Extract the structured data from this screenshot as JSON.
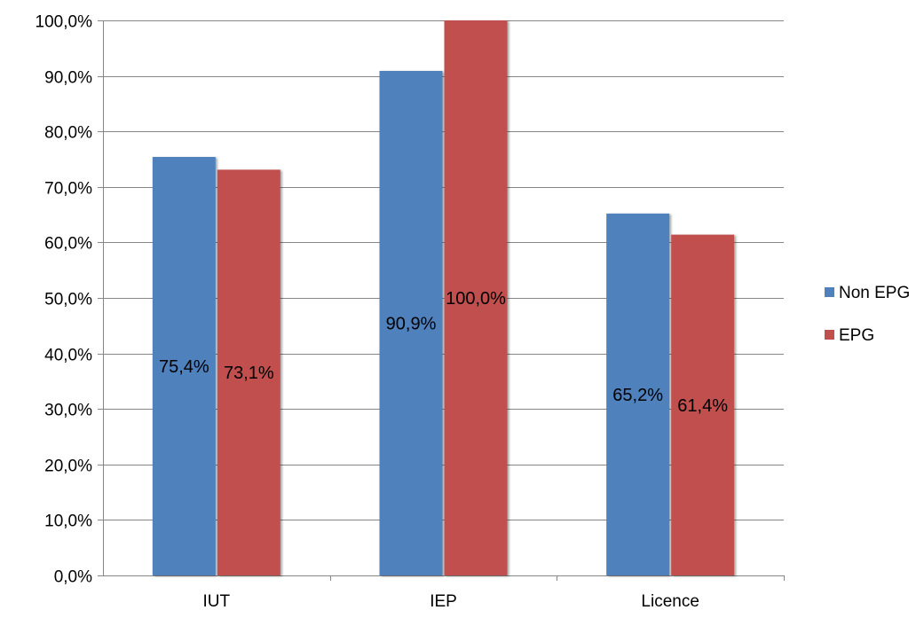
{
  "chart_data": {
    "type": "bar",
    "categories": [
      "IUT",
      "IEP",
      "Licence"
    ],
    "series": [
      {
        "name": "Non EPG",
        "color": "#4F81BD",
        "values": [
          75.4,
          90.9,
          65.2
        ],
        "labels": [
          "75,4%",
          "90,9%",
          "65,2%"
        ]
      },
      {
        "name": "EPG",
        "color": "#C0504D",
        "values": [
          73.1,
          100.0,
          61.4
        ],
        "labels": [
          "73,1%",
          "100,0%",
          "61,4%"
        ]
      }
    ],
    "ylim": [
      0,
      100
    ],
    "yticks": [
      0,
      10,
      20,
      30,
      40,
      50,
      60,
      70,
      80,
      90,
      100
    ],
    "ytick_labels": [
      "0,0%",
      "10,0%",
      "20,0%",
      "30,0%",
      "40,0%",
      "50,0%",
      "60,0%",
      "70,0%",
      "80,0%",
      "90,0%",
      "100,0%"
    ],
    "grid": true,
    "legend_position": "right",
    "title": "",
    "xlabel": "",
    "ylabel": ""
  }
}
